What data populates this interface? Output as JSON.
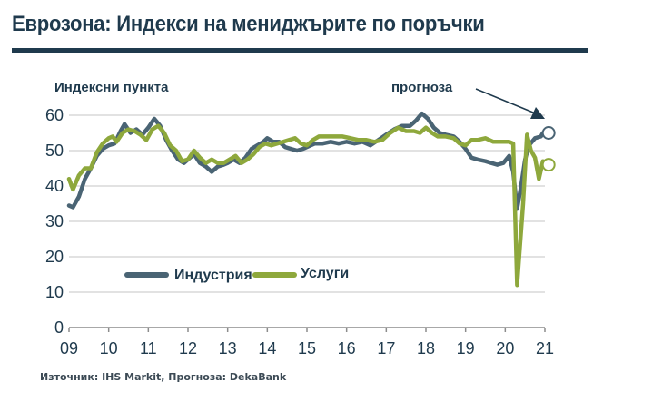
{
  "title": "Еврозона: Индекси на мениджърите по поръчки",
  "ylabel": "Индексни пункта",
  "forecast_label": "прогноза",
  "source": "Източник: IHS Markit, Прогноза: DekaBank",
  "legend": {
    "industry": "Индустрия",
    "services": "Услуги"
  },
  "colors": {
    "industry": "#4a6474",
    "services": "#8ea83c",
    "title": "#1f3a4d",
    "grid": "#d9d9d9"
  },
  "chart_data": {
    "type": "line",
    "title": "Еврозона: Индекси на мениджърите по поръчки",
    "xlabel": "",
    "ylabel": "Индексни пункта",
    "ylim": [
      0,
      60
    ],
    "yticks": [
      0,
      10,
      20,
      30,
      40,
      50,
      60
    ],
    "xticks": [
      "09",
      "10",
      "11",
      "12",
      "13",
      "14",
      "15",
      "16",
      "17",
      "18",
      "19",
      "20",
      "21"
    ],
    "grid": true,
    "legend_position": "bottom-left inside",
    "annotation": "прогноза (arrow to forecast points at end of 2020 / start of 2021)",
    "series": [
      {
        "name": "Индустрия",
        "color": "#4a6474",
        "points": [
          [
            2009.0,
            34.5
          ],
          [
            2009.1,
            34
          ],
          [
            2009.25,
            37
          ],
          [
            2009.4,
            42
          ],
          [
            2009.55,
            45
          ],
          [
            2009.7,
            48.5
          ],
          [
            2009.85,
            50.5
          ],
          [
            2010.0,
            51.5
          ],
          [
            2010.15,
            52
          ],
          [
            2010.3,
            55.5
          ],
          [
            2010.4,
            57.5
          ],
          [
            2010.55,
            55
          ],
          [
            2010.7,
            56
          ],
          [
            2010.85,
            54.5
          ],
          [
            2011.0,
            56.5
          ],
          [
            2011.15,
            59
          ],
          [
            2011.3,
            57
          ],
          [
            2011.45,
            53
          ],
          [
            2011.6,
            50
          ],
          [
            2011.75,
            47.5
          ],
          [
            2011.9,
            46.5
          ],
          [
            2012.0,
            47.5
          ],
          [
            2012.15,
            49
          ],
          [
            2012.3,
            46.5
          ],
          [
            2012.45,
            45.5
          ],
          [
            2012.6,
            44
          ],
          [
            2012.75,
            45.5
          ],
          [
            2012.9,
            46
          ],
          [
            2013.0,
            46.5
          ],
          [
            2013.15,
            47.5
          ],
          [
            2013.3,
            46.5
          ],
          [
            2013.45,
            48
          ],
          [
            2013.6,
            50.5
          ],
          [
            2013.75,
            51.5
          ],
          [
            2013.9,
            52.5
          ],
          [
            2014.0,
            53.5
          ],
          [
            2014.15,
            52.5
          ],
          [
            2014.3,
            52.5
          ],
          [
            2014.45,
            51
          ],
          [
            2014.6,
            50.5
          ],
          [
            2014.75,
            50
          ],
          [
            2014.9,
            50.5
          ],
          [
            2015.0,
            51
          ],
          [
            2015.2,
            52
          ],
          [
            2015.4,
            52
          ],
          [
            2015.6,
            52.5
          ],
          [
            2015.8,
            52
          ],
          [
            2016.0,
            52.5
          ],
          [
            2016.2,
            52
          ],
          [
            2016.4,
            52.5
          ],
          [
            2016.6,
            51.5
          ],
          [
            2016.8,
            53
          ],
          [
            2017.0,
            54.5
          ],
          [
            2017.2,
            56
          ],
          [
            2017.4,
            57
          ],
          [
            2017.6,
            57
          ],
          [
            2017.75,
            58.5
          ],
          [
            2017.9,
            60.5
          ],
          [
            2018.05,
            59
          ],
          [
            2018.2,
            56.5
          ],
          [
            2018.35,
            55
          ],
          [
            2018.5,
            54.5
          ],
          [
            2018.7,
            54
          ],
          [
            2018.85,
            52.5
          ],
          [
            2019.0,
            50.5
          ],
          [
            2019.15,
            48
          ],
          [
            2019.3,
            47.5
          ],
          [
            2019.5,
            47
          ],
          [
            2019.65,
            46.5
          ],
          [
            2019.8,
            46
          ],
          [
            2019.95,
            46.5
          ],
          [
            2020.1,
            48.5
          ],
          [
            2020.2,
            44
          ],
          [
            2020.3,
            33.5
          ],
          [
            2020.4,
            40
          ],
          [
            2020.5,
            47.5
          ],
          [
            2020.6,
            51.5
          ],
          [
            2020.75,
            53.5
          ],
          [
            2020.9,
            54
          ],
          [
            2020.95,
            55
          ]
        ],
        "forecast": [
          2021.05,
          55
        ]
      },
      {
        "name": "Услуги",
        "color": "#8ea83c",
        "points": [
          [
            2009.0,
            42
          ],
          [
            2009.1,
            39
          ],
          [
            2009.25,
            43
          ],
          [
            2009.4,
            45
          ],
          [
            2009.55,
            45
          ],
          [
            2009.7,
            49.5
          ],
          [
            2009.85,
            52
          ],
          [
            2010.0,
            53.5
          ],
          [
            2010.1,
            54
          ],
          [
            2010.2,
            52.5
          ],
          [
            2010.35,
            55
          ],
          [
            2010.5,
            56
          ],
          [
            2010.65,
            55.5
          ],
          [
            2010.8,
            54.5
          ],
          [
            2010.95,
            53
          ],
          [
            2011.1,
            56
          ],
          [
            2011.25,
            57
          ],
          [
            2011.4,
            55
          ],
          [
            2011.55,
            51.5
          ],
          [
            2011.7,
            50
          ],
          [
            2011.85,
            47
          ],
          [
            2012.0,
            47.5
          ],
          [
            2012.15,
            50
          ],
          [
            2012.3,
            48
          ],
          [
            2012.45,
            46.5
          ],
          [
            2012.6,
            47.5
          ],
          [
            2012.75,
            46.5
          ],
          [
            2012.9,
            46.5
          ],
          [
            2013.05,
            47.5
          ],
          [
            2013.2,
            48.5
          ],
          [
            2013.35,
            46.5
          ],
          [
            2013.5,
            47.5
          ],
          [
            2013.65,
            49
          ],
          [
            2013.8,
            51
          ],
          [
            2013.95,
            52
          ],
          [
            2014.1,
            51.5
          ],
          [
            2014.25,
            52
          ],
          [
            2014.4,
            52.5
          ],
          [
            2014.55,
            53
          ],
          [
            2014.7,
            53.5
          ],
          [
            2014.85,
            52
          ],
          [
            2015.0,
            51.5
          ],
          [
            2015.15,
            53
          ],
          [
            2015.3,
            54
          ],
          [
            2015.5,
            54
          ],
          [
            2015.7,
            54
          ],
          [
            2015.9,
            54
          ],
          [
            2016.1,
            53.5
          ],
          [
            2016.3,
            53
          ],
          [
            2016.5,
            53
          ],
          [
            2016.7,
            52.5
          ],
          [
            2016.9,
            53
          ],
          [
            2017.1,
            55
          ],
          [
            2017.3,
            56.5
          ],
          [
            2017.5,
            55.5
          ],
          [
            2017.7,
            55.5
          ],
          [
            2017.85,
            55
          ],
          [
            2018.0,
            56.5
          ],
          [
            2018.15,
            55
          ],
          [
            2018.3,
            54
          ],
          [
            2018.5,
            54
          ],
          [
            2018.7,
            53.5
          ],
          [
            2018.85,
            52
          ],
          [
            2019.0,
            51.5
          ],
          [
            2019.15,
            53
          ],
          [
            2019.3,
            53
          ],
          [
            2019.5,
            53.5
          ],
          [
            2019.7,
            52.5
          ],
          [
            2019.9,
            52.5
          ],
          [
            2020.1,
            52.5
          ],
          [
            2020.2,
            52
          ],
          [
            2020.3,
            12
          ],
          [
            2020.45,
            35
          ],
          [
            2020.55,
            54.5
          ],
          [
            2020.65,
            50
          ],
          [
            2020.75,
            48
          ],
          [
            2020.85,
            42
          ],
          [
            2020.95,
            47
          ]
        ],
        "forecast": [
          2021.05,
          46
        ]
      }
    ]
  }
}
